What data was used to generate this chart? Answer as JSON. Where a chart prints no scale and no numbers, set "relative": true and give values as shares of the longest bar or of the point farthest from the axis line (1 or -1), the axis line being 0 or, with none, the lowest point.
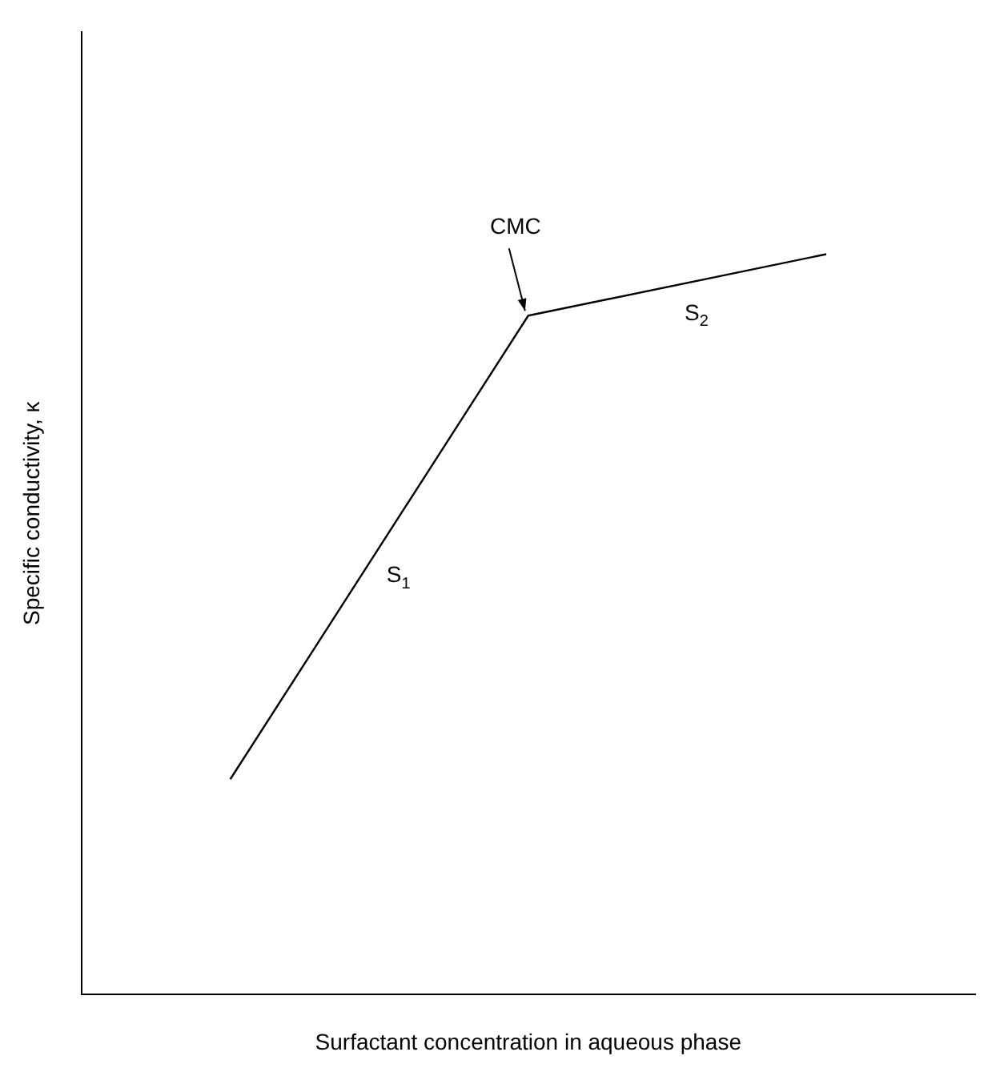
{
  "chart_data": {
    "type": "line",
    "relative": true,
    "xlabel": "Surfactant concentration in aqueous phase",
    "ylabel": "Specific conductivity, κ",
    "categories": [
      null,
      null,
      null
    ],
    "series": [
      {
        "color": "#000000",
        "values": [
          0.291,
          0.917,
          1
        ]
      }
    ],
    "marker": "none",
    "grid": false,
    "legend": false,
    "annotations": [
      "CMC",
      "S$_{1}$",
      "S$_{2}$"
    ]
  }
}
